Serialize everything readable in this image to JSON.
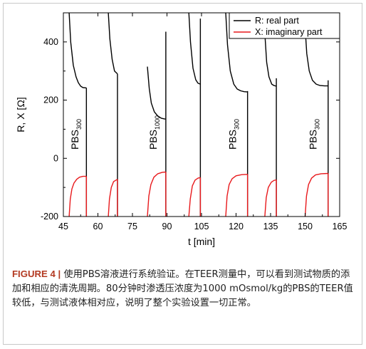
{
  "chart_data": {
    "type": "line",
    "xlabel": "t [min]",
    "ylabel": "R, X [Ω]",
    "xlim": [
      45,
      165
    ],
    "ylim": [
      -200,
      500
    ],
    "xticks": [
      45,
      60,
      75,
      90,
      105,
      120,
      135,
      150,
      165
    ],
    "yticks": [
      -200,
      0,
      200,
      400
    ],
    "legend_position": "top-right",
    "series": [
      {
        "name": "R: real part",
        "color": "#000000",
        "segments": [
          [
            [
              47.5,
              500
            ],
            [
              48.2,
              400
            ],
            [
              49.3,
              320
            ],
            [
              50.5,
              280
            ],
            [
              51.5,
              260
            ],
            [
              52.5,
              248
            ],
            [
              53.5,
              243
            ],
            [
              55,
              242
            ]
          ],
          [
            [
              64.5,
              500
            ],
            [
              65.2,
              410
            ],
            [
              66.2,
              340
            ],
            [
              67.2,
              300
            ],
            [
              68.5,
              290
            ]
          ],
          [
            [
              81.5,
              315
            ],
            [
              82.3,
              240
            ],
            [
              83.2,
              190
            ],
            [
              84.5,
              160
            ],
            [
              86,
              145
            ],
            [
              87.5,
              138
            ],
            [
              89,
              135
            ],
            [
              89.5,
              135
            ]
          ],
          [
            [
              99.5,
              500
            ],
            [
              100.2,
              400
            ],
            [
              101.3,
              310
            ],
            [
              102.5,
              270
            ],
            [
              103.5,
              258
            ],
            [
              104.5,
              255
            ]
          ],
          [
            [
              115.5,
              500
            ],
            [
              116.3,
              390
            ],
            [
              117.5,
              300
            ],
            [
              119,
              255
            ],
            [
              120.5,
              238
            ],
            [
              122,
              232
            ],
            [
              123.5,
              229
            ],
            [
              125,
              228
            ]
          ],
          [
            [
              132.5,
              430
            ],
            [
              133.3,
              330
            ],
            [
              134.3,
              280
            ],
            [
              135.5,
              255
            ],
            [
              136.5,
              250
            ],
            [
              137.5,
              248
            ]
          ],
          [
            [
              150,
              450
            ],
            [
              150.7,
              360
            ],
            [
              151.8,
              300
            ],
            [
              153.2,
              268
            ],
            [
              154.8,
              255
            ],
            [
              156.5,
              250
            ],
            [
              158.5,
              249
            ],
            [
              160,
              249
            ]
          ]
        ],
        "verticals": [
          [
            55,
            -200,
            242
          ],
          [
            68.5,
            -200,
            290
          ],
          [
            89.5,
            -200,
            435
          ],
          [
            104.5,
            -200,
            480
          ],
          [
            125,
            -200,
            231
          ],
          [
            137.5,
            -200,
            275
          ],
          [
            160,
            -200,
            268
          ]
        ]
      },
      {
        "name": "X: imaginary part",
        "color": "#e8191c",
        "segments": [
          [
            [
              47.5,
              -200
            ],
            [
              48,
              -140
            ],
            [
              48.7,
              -105
            ],
            [
              49.6,
              -85
            ],
            [
              50.8,
              -72
            ],
            [
              52,
              -65
            ],
            [
              53.5,
              -62
            ],
            [
              55,
              -62
            ]
          ],
          [
            [
              64.5,
              -200
            ],
            [
              65,
              -140
            ],
            [
              65.8,
              -100
            ],
            [
              66.8,
              -80
            ],
            [
              68.5,
              -72
            ]
          ],
          [
            [
              81.5,
              -200
            ],
            [
              82.1,
              -130
            ],
            [
              83,
              -90
            ],
            [
              84.3,
              -65
            ],
            [
              86,
              -53
            ],
            [
              88,
              -48
            ],
            [
              89.5,
              -47
            ]
          ],
          [
            [
              99.5,
              -200
            ],
            [
              100.1,
              -140
            ],
            [
              101,
              -95
            ],
            [
              102.2,
              -75
            ],
            [
              103.5,
              -68
            ],
            [
              104.5,
              -66
            ]
          ],
          [
            [
              115.5,
              -200
            ],
            [
              116.1,
              -130
            ],
            [
              117,
              -90
            ],
            [
              118.3,
              -70
            ],
            [
              120,
              -60
            ],
            [
              122.5,
              -56
            ],
            [
              125,
              -55
            ]
          ],
          [
            [
              132.5,
              -200
            ],
            [
              133.1,
              -135
            ],
            [
              134,
              -100
            ],
            [
              135.3,
              -82
            ],
            [
              136.5,
              -76
            ],
            [
              137.5,
              -74
            ]
          ],
          [
            [
              150,
              -200
            ],
            [
              150.6,
              -130
            ],
            [
              151.5,
              -90
            ],
            [
              152.8,
              -68
            ],
            [
              154.5,
              -57
            ],
            [
              157,
              -53
            ],
            [
              160,
              -52
            ]
          ]
        ],
        "verticals": [
          [
            55,
            -200,
            -62
          ],
          [
            68.5,
            -200,
            -72
          ],
          [
            89.5,
            -200,
            -47
          ],
          [
            104.5,
            -200,
            -66
          ],
          [
            125,
            -200,
            -55
          ],
          [
            137.5,
            -200,
            -74
          ],
          [
            160,
            -200,
            -52
          ]
        ]
      }
    ],
    "annotations": [
      {
        "label": "PBS",
        "subscript": "300",
        "x": 51.5,
        "y": 30
      },
      {
        "label": "PBS",
        "subscript": "1000",
        "x": 85.5,
        "y": 30
      },
      {
        "label": "PBS",
        "subscript": "300",
        "x": 120,
        "y": 30
      },
      {
        "label": "PBS",
        "subscript": "300",
        "x": 155,
        "y": 30
      }
    ]
  },
  "caption": {
    "label": "FIGURE 4 |",
    "text": " 使用PBS溶液进行系统验证。在TEER测量中，可以看到测试物质的添加和相应的清洗周期。80分钟时渗透压浓度为1000 mOsmol/kg的PBS的TEER值较低，与测试液体相对应，说明了整个实验设置一切正常。"
  }
}
